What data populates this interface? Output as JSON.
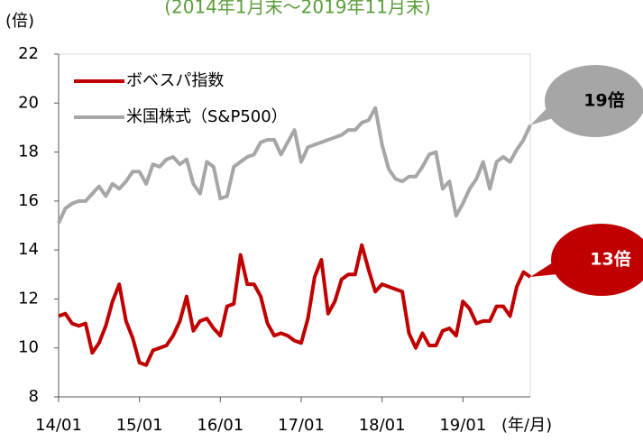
{
  "chart_data": {
    "type": "line",
    "title": "(2014年1月末～2019年11月末)",
    "ylabel": "(倍)",
    "xlabel": "(年/月)",
    "categories": [
      "14/01",
      null,
      null,
      null,
      null,
      null,
      null,
      null,
      null,
      null,
      null,
      null,
      "15/01",
      null,
      null,
      null,
      null,
      null,
      null,
      null,
      null,
      null,
      null,
      null,
      "16/01",
      null,
      null,
      null,
      null,
      null,
      null,
      null,
      null,
      null,
      null,
      null,
      "17/01",
      null,
      null,
      null,
      null,
      null,
      null,
      null,
      null,
      null,
      null,
      null,
      "18/01",
      null,
      null,
      null,
      null,
      null,
      null,
      null,
      null,
      null,
      null,
      null,
      "19/01",
      null,
      null,
      null,
      null,
      null,
      null,
      null,
      null,
      null,
      null
    ],
    "series": [
      {
        "name": "ボベスパ指数",
        "color": "#c00000",
        "values": [
          11.3,
          11.4,
          11.0,
          10.9,
          11.0,
          9.8,
          10.2,
          10.9,
          11.9,
          12.6,
          11.1,
          10.4,
          9.4,
          9.3,
          9.9,
          10.0,
          10.1,
          10.5,
          11.1,
          12.1,
          10.7,
          11.1,
          11.2,
          10.8,
          10.5,
          11.7,
          11.8,
          13.8,
          12.6,
          12.6,
          12.1,
          11.0,
          10.5,
          10.6,
          10.5,
          10.3,
          10.2,
          11.2,
          12.9,
          13.6,
          11.4,
          11.9,
          12.8,
          13.0,
          13.0,
          14.2,
          13.2,
          12.3,
          12.6,
          12.5,
          12.4,
          12.3,
          10.6,
          10.0,
          10.6,
          10.1,
          10.1,
          10.7,
          10.8,
          10.5,
          11.9,
          11.6,
          11.0,
          11.1,
          11.1,
          11.7,
          11.7,
          11.3,
          12.5,
          13.1,
          12.9
        ]
      },
      {
        "name": "米国株式（S&P500）",
        "color": "#a6a6a6",
        "values": [
          15.1,
          15.7,
          15.9,
          16.0,
          16.0,
          16.3,
          16.6,
          16.2,
          16.7,
          16.5,
          16.8,
          17.2,
          17.2,
          16.7,
          17.5,
          17.4,
          17.7,
          17.8,
          17.5,
          17.7,
          16.7,
          16.3,
          17.6,
          17.4,
          16.1,
          16.2,
          17.4,
          17.6,
          17.8,
          17.9,
          18.4,
          18.5,
          18.5,
          17.9,
          18.4,
          18.9,
          17.6,
          18.2,
          18.3,
          18.4,
          18.5,
          18.6,
          18.7,
          18.9,
          18.9,
          19.2,
          19.3,
          19.8,
          18.3,
          17.3,
          16.9,
          16.8,
          17.0,
          17.0,
          17.4,
          17.9,
          18.0,
          16.5,
          16.8,
          15.4,
          15.9,
          16.5,
          16.9,
          17.6,
          16.5,
          17.6,
          17.8,
          17.6,
          18.1,
          18.5,
          19.1
        ]
      }
    ],
    "annotations": [
      "13倍",
      "19倍"
    ],
    "ylim": [
      8,
      22
    ],
    "yticks": [
      8,
      10,
      12,
      14,
      16,
      18,
      20,
      22
    ]
  }
}
